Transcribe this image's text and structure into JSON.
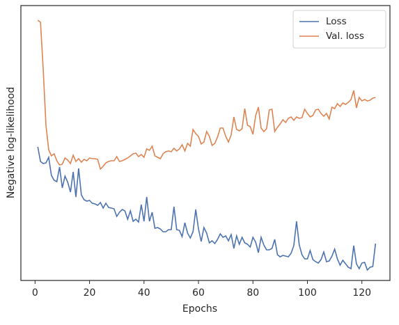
{
  "chart_data": {
    "type": "line",
    "xlabel": "Epochs",
    "ylabel": "Negative log-likelihood",
    "x": [
      1,
      2,
      3,
      4,
      5,
      6,
      7,
      8,
      9,
      10,
      11,
      12,
      13,
      14,
      15,
      16,
      17,
      18,
      19,
      20,
      21,
      22,
      23,
      24,
      25,
      26,
      27,
      28,
      29,
      30,
      31,
      32,
      33,
      34,
      35,
      36,
      37,
      38,
      39,
      40,
      41,
      42,
      43,
      44,
      45,
      46,
      47,
      48,
      49,
      50,
      51,
      52,
      53,
      54,
      55,
      56,
      57,
      58,
      59,
      60,
      61,
      62,
      63,
      64,
      65,
      66,
      67,
      68,
      69,
      70,
      71,
      72,
      73,
      74,
      75,
      76,
      77,
      78,
      79,
      80,
      81,
      82,
      83,
      84,
      85,
      86,
      87,
      88,
      89,
      90,
      91,
      92,
      93,
      94,
      95,
      96,
      97,
      98,
      99,
      100,
      101,
      102,
      103,
      104,
      105,
      106,
      107,
      108,
      109,
      110,
      111,
      112,
      113,
      114,
      115,
      116,
      117,
      118,
      119,
      120,
      121,
      122,
      123,
      124,
      125
    ],
    "series": [
      {
        "name": "Loss",
        "color": "#4c72b0",
        "values": [
          192,
          171,
          168,
          169,
          177,
          151,
          144,
          142,
          163,
          133,
          150,
          141,
          127,
          156,
          120,
          161,
          123,
          116,
          114,
          115,
          111,
          110,
          108,
          112,
          104,
          111,
          105,
          104,
          103,
          92,
          98,
          102,
          100,
          88,
          100,
          85,
          88,
          84,
          109,
          85,
          120,
          85,
          98,
          75,
          76,
          74,
          70,
          70,
          73,
          73,
          106,
          73,
          72,
          63,
          83,
          68,
          61,
          70,
          102,
          74,
          56,
          76,
          68,
          54,
          57,
          53,
          59,
          67,
          62,
          64,
          57,
          66,
          46,
          64,
          52,
          62,
          54,
          52,
          48,
          62,
          55,
          40,
          62,
          51,
          44,
          44,
          46,
          59,
          37,
          34,
          36,
          35,
          34,
          39,
          50,
          85,
          51,
          37,
          31,
          31,
          43,
          30,
          27,
          25,
          30,
          41,
          27,
          28,
          35,
          45,
          31,
          22,
          29,
          24,
          19,
          17,
          50,
          24,
          17,
          25,
          26,
          15,
          19,
          20,
          53
        ]
      },
      {
        "name": "Val. loss",
        "color": "#dd8452",
        "values": [
          374,
          371,
          303,
          223,
          188,
          179,
          182,
          172,
          166,
          167,
          176,
          173,
          168,
          180,
          171,
          175,
          170,
          174,
          172,
          176,
          175,
          175,
          174,
          160,
          164,
          169,
          171,
          172,
          172,
          178,
          171,
          172,
          174,
          176,
          179,
          182,
          183,
          178,
          181,
          177,
          189,
          187,
          193,
          179,
          177,
          175,
          182,
          185,
          186,
          185,
          190,
          186,
          189,
          195,
          186,
          197,
          193,
          217,
          211,
          207,
          196,
          199,
          214,
          207,
          194,
          197,
          206,
          219,
          219,
          207,
          199,
          209,
          235,
          217,
          215,
          218,
          247,
          223,
          221,
          210,
          237,
          249,
          219,
          214,
          218,
          245,
          246,
          214,
          220,
          225,
          231,
          227,
          233,
          235,
          230,
          235,
          233,
          234,
          246,
          240,
          235,
          237,
          245,
          246,
          240,
          236,
          240,
          232,
          249,
          247,
          254,
          250,
          255,
          253,
          256,
          260,
          273,
          248,
          263,
          258,
          260,
          258,
          259,
          262,
          263
        ]
      }
    ],
    "xlim": [
      -5.2,
      130.3
    ],
    "xticks": [
      0,
      20,
      40,
      60,
      80,
      100,
      120
    ],
    "ylim": [
      0,
      395
    ],
    "legend": "upper right"
  }
}
